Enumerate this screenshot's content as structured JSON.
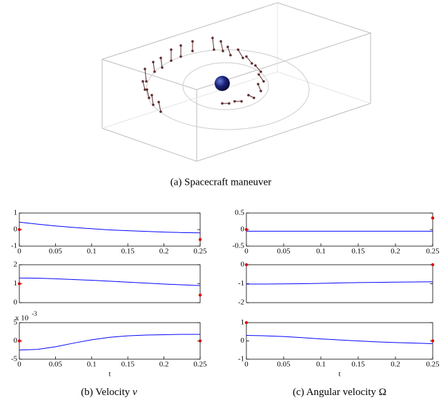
{
  "captions": {
    "a": "(a) Spacecraft maneuver",
    "b": {
      "label": "(b) Velocity",
      "symbol": "v"
    },
    "c": {
      "label": "(c) Angular velocity",
      "symbol": "Ω"
    }
  },
  "chart_data": [
    {
      "type": "line",
      "x": [
        0,
        0.025,
        0.05,
        0.075,
        0.1,
        0.125,
        0.15,
        0.175,
        0.2,
        0.225,
        0.25
      ],
      "series": [
        {
          "color": "#0000ff",
          "values": [
            0.45,
            0.33,
            0.22,
            0.13,
            0.05,
            -0.02,
            -0.07,
            -0.11,
            -0.15,
            -0.18,
            -0.2
          ]
        }
      ],
      "markers": {
        "x": [
          0,
          0.25
        ],
        "values": [
          0,
          -0.6
        ],
        "color": "#dd0000"
      },
      "xlim": [
        0,
        0.25
      ],
      "xticks": [
        0,
        0.05,
        0.1,
        0.15,
        0.2,
        0.25
      ],
      "ylim": [
        -1,
        1
      ],
      "yticks": [
        -1,
        0,
        1
      ]
    },
    {
      "type": "line",
      "x": [
        0,
        0.025,
        0.05,
        0.075,
        0.1,
        0.125,
        0.15,
        0.175,
        0.2,
        0.225,
        0.25
      ],
      "series": [
        {
          "color": "#0000ff",
          "values": [
            1.3,
            1.29,
            1.26,
            1.22,
            1.18,
            1.13,
            1.08,
            1.03,
            0.98,
            0.94,
            0.9
          ]
        }
      ],
      "markers": {
        "x": [
          0,
          0.25
        ],
        "values": [
          1,
          0.4
        ],
        "color": "#dd0000"
      },
      "xlim": [
        0,
        0.25
      ],
      "ylim": [
        0,
        2
      ],
      "yticks": [
        0,
        1,
        2
      ]
    },
    {
      "type": "line",
      "x": [
        0,
        0.025,
        0.05,
        0.075,
        0.1,
        0.125,
        0.15,
        0.175,
        0.2,
        0.225,
        0.25
      ],
      "series": [
        {
          "color": "#0000ff",
          "values": [
            -2.5,
            -2.3,
            -1.6,
            -0.6,
            0.3,
            1.0,
            1.4,
            1.6,
            1.7,
            1.8,
            1.8
          ]
        }
      ],
      "markers": {
        "x": [
          0,
          0.25
        ],
        "values": [
          0,
          0
        ],
        "color": "#dd0000"
      },
      "xlim": [
        0,
        0.25
      ],
      "xticks": [
        0,
        0.05,
        0.1,
        0.15,
        0.2,
        0.25
      ],
      "ylim": [
        -5,
        5
      ],
      "yticks": [
        -5,
        0,
        5
      ],
      "y_scale_label": "x 10",
      "y_scale_exponent": "-3",
      "xlabel": "t"
    },
    {
      "type": "line",
      "x": [
        0,
        0.025,
        0.05,
        0.075,
        0.1,
        0.125,
        0.15,
        0.175,
        0.2,
        0.225,
        0.25
      ],
      "series": [
        {
          "color": "#0000ff",
          "values": [
            -0.05,
            -0.05,
            -0.05,
            -0.05,
            -0.05,
            -0.05,
            -0.05,
            -0.05,
            -0.05,
            -0.05,
            -0.05
          ]
        }
      ],
      "markers": {
        "x": [
          0,
          0.25
        ],
        "values": [
          0,
          0.35
        ],
        "color": "#dd0000"
      },
      "xlim": [
        0,
        0.25
      ],
      "xticks": [
        0,
        0.05,
        0.1,
        0.15,
        0.2,
        0.25
      ],
      "ylim": [
        -0.5,
        0.5
      ],
      "yticks": [
        -0.5,
        0,
        0.5
      ]
    },
    {
      "type": "line",
      "x": [
        0,
        0.025,
        0.05,
        0.075,
        0.1,
        0.125,
        0.15,
        0.175,
        0.2,
        0.225,
        0.25
      ],
      "series": [
        {
          "color": "#0000ff",
          "values": [
            -1.02,
            -1.02,
            -1.01,
            -1.0,
            -0.98,
            -0.96,
            -0.94,
            -0.93,
            -0.92,
            -0.91,
            -0.9
          ]
        }
      ],
      "markers": {
        "x": [
          0,
          0.25
        ],
        "values": [
          0,
          0
        ],
        "color": "#dd0000"
      },
      "xlim": [
        0,
        0.25
      ],
      "ylim": [
        -2,
        0
      ],
      "yticks": [
        -2,
        -1,
        0
      ]
    },
    {
      "type": "line",
      "x": [
        0,
        0.025,
        0.05,
        0.075,
        0.1,
        0.125,
        0.15,
        0.175,
        0.2,
        0.225,
        0.25
      ],
      "series": [
        {
          "color": "#0000ff",
          "values": [
            0.3,
            0.28,
            0.24,
            0.18,
            0.11,
            0.05,
            0.0,
            -0.05,
            -0.09,
            -0.12,
            -0.15
          ]
        }
      ],
      "markers": {
        "x": [
          0,
          0.25
        ],
        "values": [
          1,
          0
        ],
        "color": "#dd0000"
      },
      "xlim": [
        0,
        0.25
      ],
      "xticks": [
        0,
        0.05,
        0.1,
        0.15,
        0.2,
        0.25
      ],
      "ylim": [
        -1,
        1
      ],
      "yticks": [
        -1,
        0,
        1
      ],
      "xlabel": "t"
    }
  ]
}
